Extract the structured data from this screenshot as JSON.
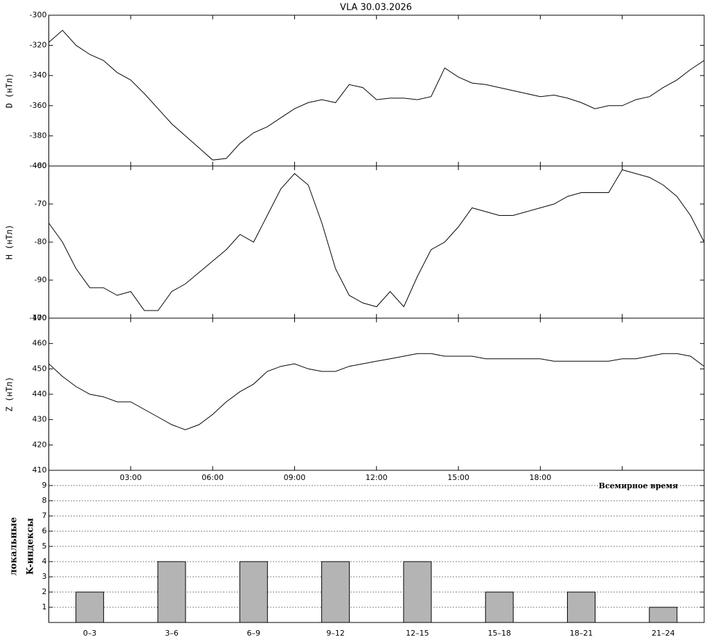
{
  "chart_data": [
    {
      "type": "line",
      "title": "VLA   30.03.2026",
      "ylabel": "D (нТл)",
      "xlim": [
        0,
        24
      ],
      "ylim": [
        -400,
        -300
      ],
      "yticks": [
        -400,
        -380,
        -360,
        -340,
        -320,
        -300
      ],
      "x": [
        0,
        0.5,
        1,
        1.5,
        2,
        2.5,
        3,
        3.5,
        4,
        4.5,
        5,
        5.5,
        6,
        6.5,
        7,
        7.5,
        8,
        8.5,
        9,
        9.5,
        10,
        10.5,
        11,
        11.5,
        12,
        12.5,
        13,
        13.5,
        14,
        14.5,
        15,
        15.5,
        16,
        16.5,
        17,
        17.5,
        18,
        18.5,
        19,
        19.5,
        20,
        20.5,
        21,
        21.5,
        22,
        22.5,
        23,
        23.5,
        24
      ],
      "values": [
        -318,
        -310,
        -320,
        -326,
        -330,
        -338,
        -343,
        -352,
        -362,
        -372,
        -380,
        -388,
        -396,
        -395,
        -385,
        -378,
        -374,
        -368,
        -362,
        -358,
        -356,
        -358,
        -346,
        -348,
        -356,
        -355,
        -355,
        -356,
        -354,
        -335,
        -341,
        -345,
        -346,
        -348,
        -350,
        -352,
        -354,
        -353,
        -355,
        -358,
        -362,
        -360,
        -360,
        -356,
        -354,
        -348,
        -343,
        -336,
        -330
      ]
    },
    {
      "type": "line",
      "ylabel": "H (нТл)",
      "xlim": [
        0,
        24
      ],
      "ylim": [
        -100,
        -60
      ],
      "yticks": [
        -100,
        -90,
        -80,
        -70,
        -60
      ],
      "x": [
        0,
        0.5,
        1,
        1.5,
        2,
        2.5,
        3,
        3.5,
        4,
        4.5,
        5,
        5.5,
        6,
        6.5,
        7,
        7.5,
        8,
        8.5,
        9,
        9.5,
        10,
        10.5,
        11,
        11.5,
        12,
        12.5,
        13,
        13.5,
        14,
        14.5,
        15,
        15.5,
        16,
        16.5,
        17,
        17.5,
        18,
        18.5,
        19,
        19.5,
        20,
        20.5,
        21,
        21.5,
        22,
        22.5,
        23,
        23.5,
        24
      ],
      "values": [
        -75,
        -80,
        -87,
        -92,
        -92,
        -94,
        -93,
        -98,
        -98,
        -93,
        -91,
        -88,
        -85,
        -82,
        -78,
        -80,
        -73,
        -66,
        -62,
        -65,
        -75,
        -87,
        -94,
        -96,
        -97,
        -93,
        -97,
        -89,
        -82,
        -80,
        -76,
        -71,
        -72,
        -73,
        -73,
        -72,
        -71,
        -70,
        -68,
        -67,
        -67,
        -67,
        -61,
        -62,
        -63,
        -65,
        -68,
        -73,
        -80
      ]
    },
    {
      "type": "line",
      "ylabel": "Z (нТл)",
      "xlabel": "Всемирное время",
      "xlim": [
        0,
        24
      ],
      "ylim": [
        410,
        470
      ],
      "yticks": [
        410,
        420,
        430,
        440,
        450,
        460,
        470
      ],
      "xticks": [
        {
          "value": 3,
          "label": "03:00"
        },
        {
          "value": 6,
          "label": "06:00"
        },
        {
          "value": 9,
          "label": "09:00"
        },
        {
          "value": 12,
          "label": "12:00"
        },
        {
          "value": 15,
          "label": "15:00"
        },
        {
          "value": 18,
          "label": "18:00"
        },
        {
          "value": 21,
          "label": ""
        }
      ],
      "x": [
        0,
        0.5,
        1,
        1.5,
        2,
        2.5,
        3,
        3.5,
        4,
        4.5,
        5,
        5.5,
        6,
        6.5,
        7,
        7.5,
        8,
        8.5,
        9,
        9.5,
        10,
        10.5,
        11,
        11.5,
        12,
        12.5,
        13,
        13.5,
        14,
        14.5,
        15,
        15.5,
        16,
        16.5,
        17,
        17.5,
        18,
        18.5,
        19,
        19.5,
        20,
        20.5,
        21,
        21.5,
        22,
        22.5,
        23,
        23.5,
        24
      ],
      "values": [
        452,
        447,
        443,
        440,
        439,
        437,
        437,
        434,
        431,
        428,
        426,
        428,
        432,
        437,
        441,
        444,
        449,
        451,
        452,
        450,
        449,
        449,
        451,
        452,
        453,
        454,
        455,
        456,
        456,
        455,
        455,
        455,
        454,
        454,
        454,
        454,
        454,
        453,
        453,
        453,
        453,
        453,
        454,
        454,
        455,
        456,
        456,
        455,
        451
      ]
    },
    {
      "type": "bar",
      "ylabel": [
        "локальные",
        "K-индексы"
      ],
      "categories": [
        "0–3",
        "3–6",
        "6–9",
        "9–12",
        "12–15",
        "15–18",
        "18–21",
        "21–24"
      ],
      "values": [
        2,
        4,
        4,
        4,
        4,
        2,
        2,
        1
      ],
      "color": "#b4b4b4",
      "ylim": [
        0,
        10
      ],
      "yticks": [
        1,
        2,
        3,
        4,
        5,
        6,
        7,
        8,
        9
      ],
      "grid": true
    }
  ]
}
